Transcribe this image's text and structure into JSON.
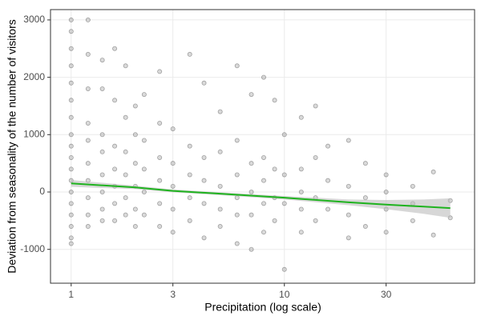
{
  "chart_data": {
    "type": "scatter",
    "xlabel": "Precipitation (log scale)",
    "ylabel": "Deviation from seasonality of the number of visitors",
    "x_scale": "log",
    "xlim": [
      0.8,
      78
    ],
    "ylim": [
      -1590,
      3180
    ],
    "xticks": [
      1,
      3,
      10,
      30
    ],
    "yticks": [
      -1000,
      0,
      1000,
      2000,
      3000
    ],
    "grid": true,
    "series": [
      {
        "type": "scatter",
        "color": "#333333",
        "x": [
          1,
          1,
          1,
          1,
          1,
          1,
          1,
          1,
          1,
          1,
          1,
          1,
          1,
          1,
          1,
          1,
          1,
          1,
          1.2,
          1.2,
          1.2,
          1.2,
          1.2,
          1.2,
          1.2,
          1.2,
          1.2,
          1.2,
          1.4,
          1.4,
          1.4,
          1.4,
          1.4,
          1.4,
          1.4,
          1.4,
          1.6,
          1.6,
          1.6,
          1.6,
          1.6,
          1.6,
          1.6,
          1.8,
          1.8,
          1.8,
          1.8,
          1.8,
          1.8,
          2,
          2,
          2,
          2,
          2,
          2,
          2.2,
          2.2,
          2.2,
          2.2,
          2.2,
          2.6,
          2.6,
          2.6,
          2.6,
          2.6,
          2.6,
          3,
          3,
          3,
          3,
          3,
          3.6,
          3.6,
          3.6,
          3.6,
          3.6,
          4.2,
          4.2,
          4.2,
          4.2,
          4.2,
          5,
          5,
          5,
          5,
          5,
          6,
          6,
          6,
          6,
          6,
          6,
          7,
          7,
          7,
          7,
          7,
          8,
          8,
          8,
          8,
          8,
          9,
          9,
          9,
          9,
          10,
          10,
          10,
          10,
          12,
          12,
          12,
          12,
          12,
          14,
          14,
          14,
          14,
          16,
          16,
          16,
          20,
          20,
          20,
          20,
          24,
          24,
          24,
          30,
          30,
          30,
          30,
          40,
          40,
          40,
          50,
          50,
          60,
          60
        ],
        "values": [
          3000,
          2800,
          2500,
          2200,
          1900,
          1600,
          1300,
          1000,
          800,
          600,
          400,
          200,
          0,
          -200,
          -400,
          -600,
          -800,
          -900,
          3000,
          2400,
          1800,
          1200,
          900,
          500,
          200,
          -100,
          -400,
          -600,
          2300,
          1800,
          1000,
          700,
          300,
          0,
          -300,
          -500,
          2500,
          1600,
          800,
          400,
          100,
          -200,
          -500,
          2200,
          1300,
          700,
          300,
          -100,
          -400,
          1500,
          1000,
          500,
          100,
          -300,
          -600,
          1700,
          900,
          400,
          0,
          -400,
          2100,
          1200,
          600,
          200,
          -200,
          -600,
          1100,
          500,
          100,
          -300,
          -700,
          2400,
          800,
          300,
          -100,
          -500,
          1900,
          600,
          200,
          -200,
          -800,
          1400,
          700,
          100,
          -300,
          -600,
          2200,
          900,
          300,
          -100,
          -400,
          -900,
          1700,
          500,
          0,
          -400,
          -1000,
          2000,
          600,
          200,
          -200,
          -700,
          1600,
          400,
          -100,
          -500,
          1000,
          300,
          -200,
          -1350,
          1300,
          400,
          0,
          -300,
          -700,
          1500,
          600,
          -100,
          -500,
          800,
          200,
          -300,
          900,
          100,
          -400,
          -800,
          500,
          -100,
          -600,
          300,
          0,
          -300,
          -700,
          100,
          -200,
          -500,
          350,
          -750,
          -150,
          -450
        ]
      },
      {
        "type": "line",
        "color": "#1fb31f",
        "band_color": "#bdbdbd",
        "x": [
          1,
          2,
          3,
          5,
          10,
          20,
          30,
          45,
          60
        ],
        "values": [
          150,
          80,
          20,
          -30,
          -100,
          -180,
          -220,
          -255,
          -280
        ],
        "lower": [
          90,
          50,
          -5,
          -55,
          -130,
          -230,
          -300,
          -380,
          -450
        ],
        "upper": [
          210,
          110,
          45,
          -5,
          -70,
          -130,
          -140,
          -130,
          -110
        ]
      }
    ]
  }
}
